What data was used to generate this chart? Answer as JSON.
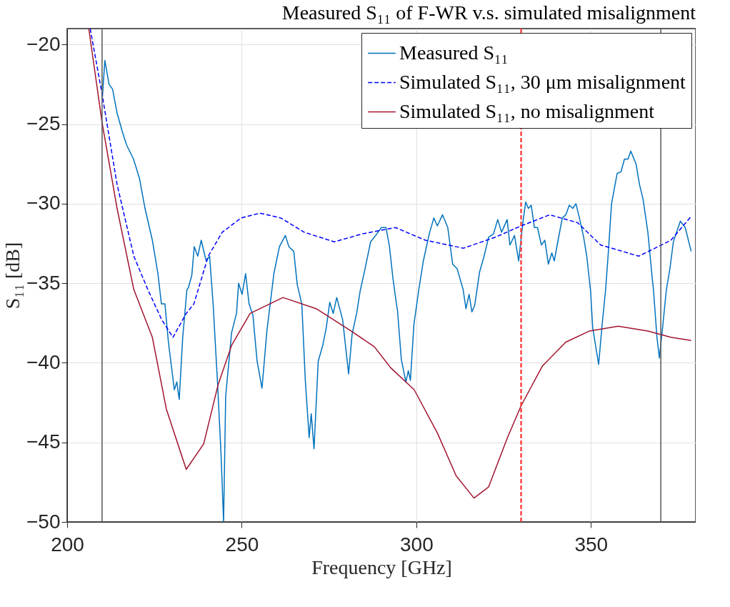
{
  "chart_data": {
    "type": "line",
    "title": "Measured S₁₁ of F-WR v.s. simulated misalignment",
    "xlabel": "Frequency [GHz]",
    "ylabel": "S₁₁ [dB]",
    "xlim": [
      200,
      380
    ],
    "xticks": [
      200,
      250,
      300,
      350
    ],
    "ylim": [
      -50,
      -19
    ],
    "yticks": [
      -50,
      -45,
      -40,
      -35,
      -30,
      -25,
      -20
    ],
    "grid": true,
    "legend": "top right",
    "marker": "none",
    "series": [
      {
        "name": "Measured S₁₁",
        "color": "#0072bd",
        "line_style": "solid",
        "x": [
          210.1,
          210.8,
          212,
          213,
          214.3,
          215.7,
          217,
          219,
          220.7,
          222.3,
          224.4,
          226,
          227,
          228,
          229,
          230.7,
          231.4,
          232.1,
          233.1,
          234.3,
          234.7,
          235.7,
          236.4,
          237.4,
          238.4,
          239.8,
          240.8,
          241.8,
          243.1,
          244.1,
          244.8,
          245.4,
          247.1,
          248.5,
          249.1,
          250.1,
          251.1,
          252.1,
          253.2,
          254.4,
          255.8,
          257.2,
          258.2,
          259.2,
          260.8,
          262.5,
          263.5,
          264.9,
          265.9,
          267.2,
          268.2,
          269.3,
          269.9,
          270.7,
          271.9,
          273.2,
          274.2,
          275.2,
          276.2,
          277.2,
          278.9,
          280.6,
          281.6,
          282.9,
          283.9,
          285.3,
          286.9,
          288,
          290,
          291.3,
          292.3,
          293.3,
          294.3,
          294.6,
          295.7,
          297,
          297.7,
          298.3,
          299.3,
          300.7,
          302,
          303.7,
          305,
          306,
          307.5,
          309,
          310.4,
          311.7,
          313.4,
          314.2,
          315.1,
          315.9,
          316.7,
          318.1,
          319.4,
          320.7,
          322.1,
          323.3,
          324.4,
          326,
          326.8,
          328.1,
          329.3,
          330.5,
          331.3,
          332.1,
          332.9,
          333.8,
          334.7,
          335.8,
          336.8,
          337.8,
          338.8,
          339.5,
          340.5,
          341.8,
          342.8,
          343.8,
          344.8,
          345.7,
          346.8,
          347.9,
          348.8,
          349.9,
          350.5,
          352.2,
          353.2,
          354.2,
          354.9,
          355.9,
          357.5,
          358.6,
          359.6,
          360.6,
          361.4,
          362.9,
          363.9,
          364.9,
          366.3,
          367.6,
          367.9,
          368.9,
          369.6,
          370.6,
          371.6,
          372.6,
          373.6,
          375.6,
          377,
          378.7
        ],
        "values": [
          -23.3,
          -21.0,
          -22.5,
          -22.8,
          -24.3,
          -25.4,
          -26.3,
          -27.2,
          -28.4,
          -30.3,
          -32.3,
          -34.4,
          -36.3,
          -36.3,
          -38.7,
          -41.7,
          -41.2,
          -42.3,
          -38.4,
          -35.4,
          -35.3,
          -34.5,
          -32.7,
          -33.3,
          -32.3,
          -33.6,
          -33.3,
          -36.3,
          -41.4,
          -45.9,
          -50.0,
          -42.1,
          -38.1,
          -36.9,
          -35.0,
          -35.7,
          -34.4,
          -36.3,
          -37.0,
          -39.9,
          -41.6,
          -38.0,
          -36.2,
          -34.4,
          -32.7,
          -32.0,
          -32.7,
          -33.0,
          -35.1,
          -36.3,
          -41.1,
          -44.7,
          -43.2,
          -45.4,
          -39.9,
          -38.9,
          -37.8,
          -36.2,
          -36.9,
          -35.9,
          -37.3,
          -40.7,
          -38.2,
          -36.9,
          -35.5,
          -34.1,
          -32.4,
          -32.1,
          -31.5,
          -31.5,
          -32.7,
          -34.7,
          -36.3,
          -36.7,
          -39.8,
          -41.2,
          -40.5,
          -41.1,
          -37.6,
          -35.4,
          -33.6,
          -31.9,
          -30.9,
          -31.4,
          -30.7,
          -31.5,
          -33.8,
          -34.1,
          -35.4,
          -36.6,
          -35.7,
          -36.8,
          -36.4,
          -34.3,
          -33.3,
          -32.1,
          -31.9,
          -31.0,
          -31.8,
          -31.0,
          -32.6,
          -32.0,
          -33.6,
          -31.2,
          -29.9,
          -30.3,
          -30.1,
          -31.5,
          -31.5,
          -32.6,
          -32.3,
          -33.8,
          -33.1,
          -33.6,
          -32.4,
          -30.9,
          -30.7,
          -30.1,
          -30.3,
          -30.0,
          -31.0,
          -32.1,
          -33.3,
          -35.5,
          -37.8,
          -40.1,
          -37.6,
          -35.4,
          -33.3,
          -30.0,
          -28.1,
          -28.0,
          -27.2,
          -27.2,
          -26.7,
          -27.5,
          -28.8,
          -29.7,
          -31.8,
          -34.8,
          -35.4,
          -38.4,
          -39.7,
          -37.6,
          -35.4,
          -34.1,
          -32.4,
          -31.1,
          -31.5,
          -33.0
        ]
      },
      {
        "name": "Simulated S₁₁, 30 μm misalignment",
        "color": "#0000ff",
        "line_style": "dashed",
        "x": [
          206.6,
          210,
          214.3,
          219.1,
          223.1,
          227.1,
          230.3,
          234.1,
          236.3,
          240.4,
          244.4,
          249.8,
          255.2,
          261.2,
          267.9,
          276.5,
          284.5,
          294,
          302.6,
          313.5,
          322.7,
          330,
          338.2,
          346.2,
          352.8,
          363.7,
          372.9,
          378.7
        ],
        "values": [
          -19.0,
          -23.1,
          -28.8,
          -33.3,
          -35.4,
          -37.3,
          -38.4,
          -36.9,
          -36.3,
          -33.3,
          -31.8,
          -30.9,
          -30.6,
          -30.9,
          -31.8,
          -32.4,
          -31.9,
          -31.5,
          -32.3,
          -32.8,
          -32.1,
          -31.4,
          -30.7,
          -31.2,
          -32.6,
          -33.3,
          -32.3,
          -30.8
        ]
      },
      {
        "name": "Simulated S₁₁, no misalignment",
        "color": "#a2142f",
        "line_style": "solid",
        "x": [
          206.2,
          210,
          214.3,
          219.1,
          224.4,
          228.4,
          234.1,
          239.1,
          243.2,
          247.1,
          252.4,
          261.8,
          271.3,
          281.3,
          288,
          292.6,
          299.4,
          306,
          311.4,
          316.5,
          320.7,
          326.1,
          330,
          336.1,
          342.8,
          349.6,
          357.8,
          366.3,
          372.9,
          378.7
        ],
        "values": [
          -19.0,
          -24.9,
          -30.3,
          -35.4,
          -38.4,
          -42.9,
          -46.7,
          -45.1,
          -41.4,
          -38.9,
          -36.9,
          -35.9,
          -36.6,
          -38.0,
          -39.0,
          -40.3,
          -41.7,
          -44.4,
          -47.1,
          -48.5,
          -47.8,
          -44.7,
          -42.7,
          -40.2,
          -38.7,
          -38.0,
          -37.7,
          -38.0,
          -38.4,
          -38.6
        ]
      }
    ],
    "ref_lines": [
      {
        "axis": "x",
        "value": 210,
        "color": "#555555",
        "line_style": "solid"
      },
      {
        "axis": "x",
        "value": 370,
        "color": "#555555",
        "line_style": "solid"
      },
      {
        "axis": "x",
        "value": 330,
        "color": "#ff4444",
        "line_style": "dashed"
      }
    ]
  }
}
